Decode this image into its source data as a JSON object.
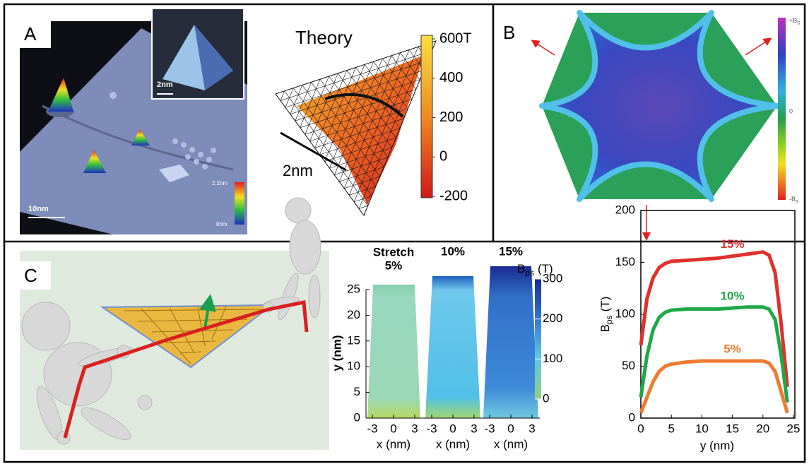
{
  "panel_a": {
    "label": "A",
    "inset_scale": "2nm",
    "scale_bar": "10nm",
    "height_max": "2.2nm",
    "height_min": "0nm",
    "theory_title": "Theory",
    "theory_scale": "2nm",
    "colorbar_ticks": [
      {
        "value": 600,
        "label": "600T"
      },
      400,
      200,
      0,
      -200
    ]
  },
  "panel_b": {
    "label": "B",
    "colorbar_ticks": [
      {
        "main": "+B",
        "sub": "S"
      },
      "0",
      {
        "main": "-B",
        "sub": "S"
      }
    ]
  },
  "panel_c": {
    "label": "C",
    "stretch_title": "Stretch",
    "maps": [
      {
        "strain": "5%"
      },
      {
        "strain": "10%"
      },
      {
        "strain": "15%"
      }
    ],
    "map_yticks": [
      0,
      5,
      10,
      15,
      20,
      25
    ],
    "map_ylabel": "y (nm)",
    "map_xticks": [
      -3,
      0,
      3
    ],
    "map_xlabel": "x (nm)",
    "colorbar_label": {
      "main": "B",
      "sub": "ps",
      "unit": "(T)"
    },
    "colorbar_ticks": [
      0,
      100,
      200,
      300
    ],
    "chart": {
      "type": "line",
      "x": [
        0,
        1,
        2,
        3,
        4,
        5,
        7.5,
        10,
        12.5,
        15,
        17.5,
        20,
        21,
        22,
        23,
        24
      ],
      "series": [
        {
          "name": "15%",
          "color": "#e0302c",
          "values": [
            70,
            115,
            135,
            145,
            149,
            151,
            152,
            153,
            154,
            156,
            158,
            160,
            157,
            140,
            90,
            30
          ]
        },
        {
          "name": "10%",
          "color": "#1fa84a",
          "values": [
            20,
            60,
            85,
            97,
            102,
            104,
            105,
            105,
            105,
            106,
            107,
            107,
            105,
            95,
            60,
            15
          ]
        },
        {
          "name": "5%",
          "color": "#ee7b30",
          "values": [
            5,
            20,
            35,
            45,
            50,
            52,
            54,
            55,
            55,
            55,
            55,
            55,
            53,
            45,
            25,
            5
          ]
        }
      ],
      "xlim": [
        0,
        25
      ],
      "ylim": [
        0,
        200
      ],
      "xticks": [
        0,
        5,
        10,
        15,
        20,
        25
      ],
      "yticks": [
        0,
        50,
        100,
        150,
        200
      ],
      "xlabel": "y (nm)",
      "ylabel": {
        "main": "B",
        "sub": "ps",
        "unit": "(T)"
      }
    }
  }
}
